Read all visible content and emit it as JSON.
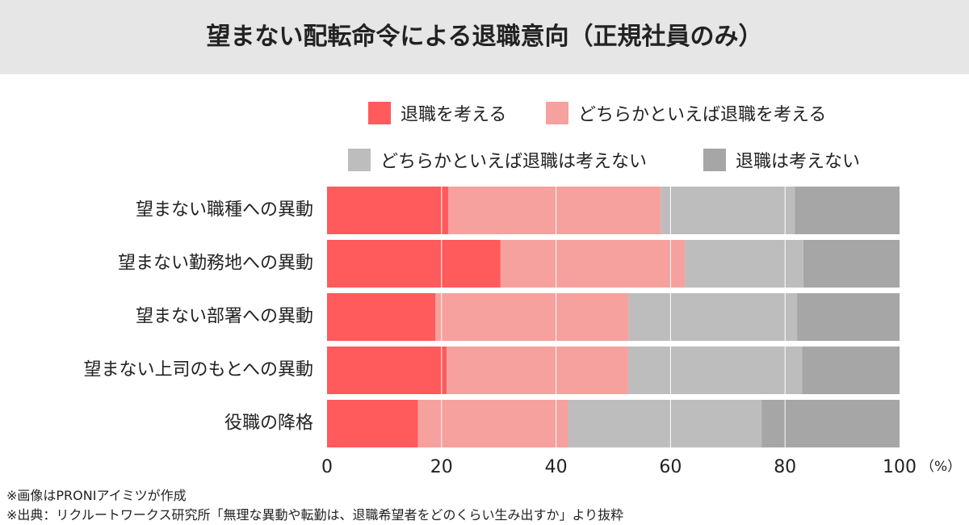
{
  "title": "望まない配転命令による退職意向（正規社員のみ）",
  "colors": {
    "title_bg": "#e6e6e6",
    "series": [
      "#ff5a5c",
      "#f6a19d",
      "#bdbdbd",
      "#a6a6a6"
    ]
  },
  "chart_data": {
    "type": "bar",
    "orientation": "horizontal",
    "stacked": true,
    "categories": [
      "望まない職種への異動",
      "望まない勤務地への異動",
      "望まない部署への異動",
      "望まない上司のもとへの異動",
      "役職の降格"
    ],
    "series": [
      {
        "name": "退職を考える",
        "values": [
          21.2,
          30.3,
          18.9,
          20.9,
          15.9
        ]
      },
      {
        "name": "どちらかといえば退職を考える",
        "values": [
          37.1,
          32.2,
          33.8,
          31.7,
          26.2
        ]
      },
      {
        "name": "どちらかといえば退職は考えない",
        "values": [
          23.4,
          20.7,
          29.4,
          30.4,
          33.8
        ]
      },
      {
        "name": "退職は考えない",
        "values": [
          18.3,
          16.8,
          17.9,
          17.0,
          24.1
        ]
      }
    ],
    "xlim": [
      0,
      100
    ],
    "xticks": [
      0,
      20,
      40,
      60,
      80,
      100
    ],
    "x_unit": "（%）",
    "grid": true,
    "legend_position": "top"
  },
  "footnotes": [
    "※画像はPRONIアイミツが作成",
    "※出典：リクルートワークス研究所「無理な異動や転勤は、退職希望者をどのくらい生み出すか」より抜粋"
  ]
}
